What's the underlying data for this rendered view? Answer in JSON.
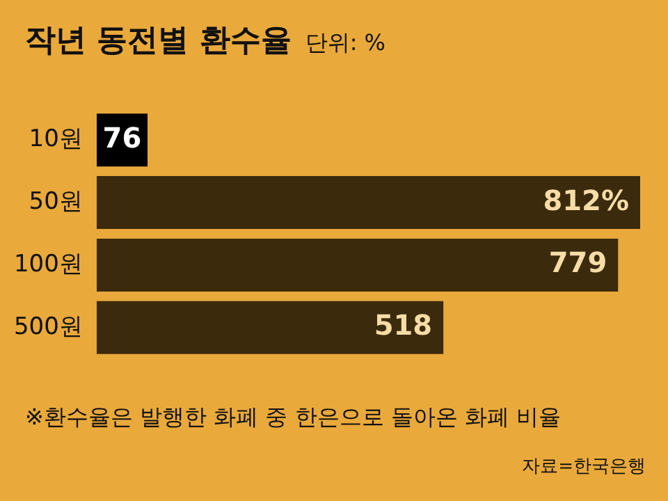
{
  "chart_data": {
    "type": "bar",
    "orientation": "horizontal",
    "title": "작년 동전별 환수율",
    "subtitle": "단위: %",
    "categories": [
      "10원",
      "50원",
      "100원",
      "500원"
    ],
    "values": [
      76,
      812,
      779,
      518
    ],
    "colors": [
      "#000000",
      "#3b2a0c",
      "#3b2a0c",
      "#3b2a0c"
    ],
    "value_labels": [
      "76",
      "812%",
      "779",
      "518"
    ],
    "grid": false,
    "legend": false,
    "annotations": [
      "※환수율은 발행한 화폐 중 한은으로 돌아온 화폐 비율",
      "자료=한국은행"
    ]
  }
}
